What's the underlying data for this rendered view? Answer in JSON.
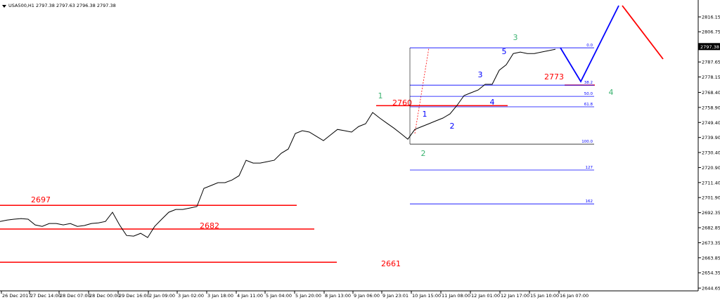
{
  "chart_data": {
    "type": "line",
    "title": "USA500,H1  2797.38 2797.63 2796.38 2797.38",
    "color": "#000000",
    "x": [
      0,
      1,
      2,
      3,
      4,
      5,
      6,
      7,
      8,
      9,
      10,
      11,
      12,
      13,
      14,
      15,
      16,
      17,
      18,
      19,
      20,
      21,
      22,
      23,
      24,
      25,
      26,
      27,
      28,
      29,
      30,
      31,
      32,
      33,
      34,
      35,
      36,
      37,
      38,
      39,
      40,
      41,
      42,
      43,
      44,
      45,
      46,
      47,
      48,
      49,
      50,
      51,
      52,
      53,
      54,
      55,
      56,
      57,
      58,
      59,
      60,
      61,
      62,
      63,
      64,
      65,
      66,
      67,
      68,
      69,
      70,
      71,
      72,
      73,
      74,
      75,
      76,
      77,
      78,
      79
    ],
    "values": [
      2686.8,
      2687.7,
      2688.2,
      2688.6,
      2688.2,
      2684.6,
      2683.7,
      2685.5,
      2685.5,
      2684.6,
      2685.5,
      2683.7,
      2684.2,
      2685.5,
      2685.9,
      2686.8,
      2692.6,
      2684.6,
      2677.9,
      2677.5,
      2679.3,
      2676.6,
      2683.7,
      2688.2,
      2692.6,
      2694.4,
      2694.4,
      2695.3,
      2696.2,
      2707.7,
      2709.5,
      2711.3,
      2711.3,
      2713.0,
      2715.7,
      2725.5,
      2723.7,
      2723.7,
      2724.6,
      2725.5,
      2729.9,
      2732.6,
      2742.4,
      2744.2,
      2743.3,
      2740.6,
      2737.9,
      2741.5,
      2745.0,
      2744.2,
      2743.3,
      2746.8,
      2748.6,
      2755.7,
      2752.2,
      2749.0,
      2745.9,
      2742.4,
      2738.8,
      2745.0,
      2746.8,
      2748.6,
      2750.4,
      2752.2,
      2754.8,
      2760.2,
      2766.4,
      2768.2,
      2769.9,
      2773.5,
      2773.5,
      2782.4,
      2785.9,
      2793.0,
      2793.9,
      2793.0,
      2793.0,
      2793.9,
      2794.8,
      2795.7
    ],
    "xlim": [
      0,
      99.3
    ],
    "ylim": [
      2642.9,
      2825.5
    ],
    "xticks": [
      {
        "value": 0.2,
        "label": "26 Dec 2017"
      },
      {
        "value": 4.2,
        "label": "27 Dec 14:00"
      },
      {
        "value": 8.4,
        "label": "28 Dec 07:00"
      },
      {
        "value": 12.6,
        "label": "28 Dec 00:00"
      },
      {
        "value": 16.8,
        "label": "29 Dec 16:00"
      },
      {
        "value": 21.1,
        "label": "2 Jan 09:00"
      },
      {
        "value": 25.2,
        "label": "3 Jan 02:00"
      },
      {
        "value": 29.4,
        "label": "3 Jan 18:00"
      },
      {
        "value": 33.6,
        "label": "4 Jan 11:00"
      },
      {
        "value": 37.7,
        "label": "5 Jan 04:00"
      },
      {
        "value": 41.9,
        "label": "5 Jan 20:00"
      },
      {
        "value": 46.1,
        "label": "8 Jan 13:00"
      },
      {
        "value": 50.2,
        "label": "9 Jan 06:00"
      },
      {
        "value": 54.3,
        "label": "9 Jan 23:01"
      },
      {
        "value": 58.5,
        "label": "10 Jan 15:00"
      },
      {
        "value": 62.7,
        "label": "11 Jan 08:00"
      },
      {
        "value": 66.9,
        "label": "12 Jan 01:00"
      },
      {
        "value": 71.1,
        "label": "12 Jan 17:00"
      },
      {
        "value": 75.3,
        "label": "15 Jan 10:00"
      },
      {
        "value": 79.5,
        "label": "16 Jan 07:00"
      }
    ],
    "yticks": [
      2816.15,
      2806.75,
      2787.65,
      2778.15,
      {
        "value": 2768.4,
        "label": "2768.40"
      },
      {
        "value": 2758.9,
        "label": "2758.90"
      },
      {
        "value": 2749.4,
        "label": "2749.40"
      },
      {
        "value": 2739.9,
        "label": "2739.90"
      },
      {
        "value": 2730.4,
        "label": "2730.40"
      },
      {
        "value": 2720.9,
        "label": "2720.90"
      },
      {
        "value": 2711.4,
        "label": "2711.40"
      },
      {
        "value": 2701.9,
        "label": "2701.90"
      },
      2692.35,
      2682.85,
      2673.35,
      2663.85,
      2654.35,
      2644.65
    ],
    "current_price": 2797.38,
    "levels": [
      2697,
      2682,
      2661,
      2760,
      2773
    ],
    "level_color": "#ff0000",
    "fib_levels": [
      {
        "value": 2796.6,
        "label": "0.0"
      },
      {
        "value": 2773.0,
        "label": "38.2"
      },
      {
        "value": 2765.9,
        "label": "50.0"
      },
      {
        "value": 2759.3,
        "label": "61.8"
      },
      {
        "value": 2735.7,
        "label": "100.0"
      },
      {
        "value": 2719.3,
        "label": "127"
      },
      {
        "value": 2697.9,
        "label": "162"
      }
    ],
    "fib_color": "#0000ff",
    "waves": [
      {
        "label": "1",
        "color": "#3cb371"
      },
      {
        "label": "2",
        "color": "#3cb371"
      },
      {
        "label": "3",
        "color": "#3cb371"
      },
      {
        "label": "4",
        "color": "#3cb371"
      },
      {
        "label": "1",
        "color": "#0000ff"
      },
      {
        "label": "2",
        "color": "#0000ff"
      },
      {
        "label": "3",
        "color": "#0000ff"
      },
      {
        "label": "4",
        "color": "#0000ff"
      },
      {
        "label": "5",
        "color": "#0000ff"
      }
    ],
    "grid": false
  }
}
